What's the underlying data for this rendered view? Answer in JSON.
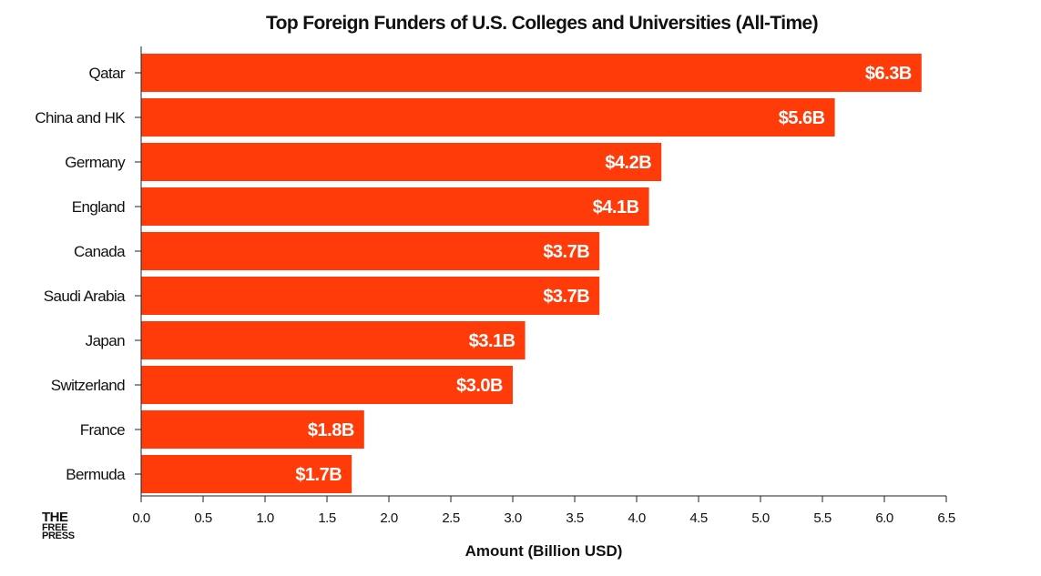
{
  "chart_data": {
    "type": "bar",
    "orientation": "horizontal",
    "title": "Top Foreign Funders of U.S. Colleges and Universities (All-Time)",
    "xlabel": "Amount (Billion USD)",
    "ylabel": "",
    "categories": [
      "Qatar",
      "China and HK",
      "Germany",
      "England",
      "Canada",
      "Saudi Arabia",
      "Japan",
      "Switzerland",
      "France",
      "Bermuda"
    ],
    "values": [
      6.3,
      5.6,
      4.2,
      4.1,
      3.7,
      3.7,
      3.1,
      3.0,
      1.8,
      1.7
    ],
    "data_labels": [
      "$6.3B",
      "$5.6B",
      "$4.2B",
      "$4.1B",
      "$3.7B",
      "$3.7B",
      "$3.1B",
      "$3.0B",
      "$1.8B",
      "$1.7B"
    ],
    "xlim": [
      0,
      6.5
    ],
    "xticks": [
      "0.0",
      "0.5",
      "1.0",
      "1.5",
      "2.0",
      "2.5",
      "3.0",
      "3.5",
      "4.0",
      "4.5",
      "5.0",
      "5.5",
      "6.0",
      "6.5"
    ],
    "grid": false,
    "legend": "none",
    "bar_color": "#ff3b0a"
  },
  "logo": {
    "line1": "THE",
    "line2": "FREE",
    "line3": "PRESS"
  }
}
